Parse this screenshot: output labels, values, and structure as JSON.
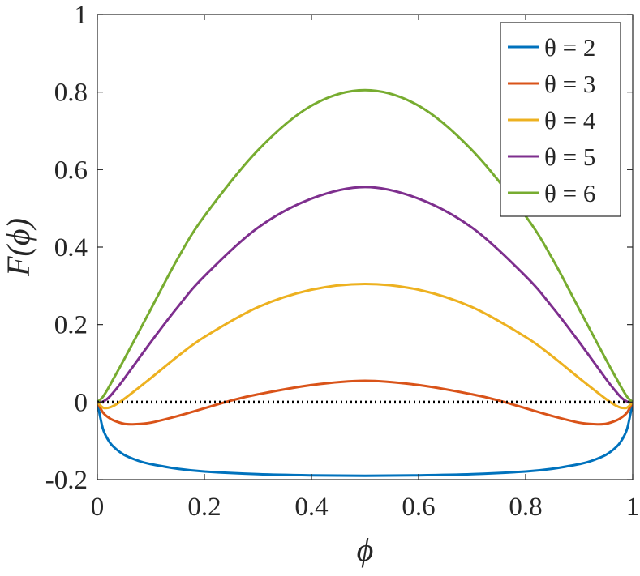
{
  "chart_data": {
    "type": "line",
    "title": "",
    "xlabel": "ϕ",
    "ylabel": "F(ϕ)",
    "xlim": [
      0,
      1
    ],
    "ylim": [
      -0.2,
      1
    ],
    "x_ticks": [
      "0",
      "0.2",
      "0.4",
      "0.6",
      "0.8",
      "1"
    ],
    "x_tick_values": [
      0,
      0.2,
      0.4,
      0.6,
      0.8,
      1
    ],
    "y_ticks": [
      "-0.2",
      "0",
      "0.2",
      "0.4",
      "0.6",
      "0.8",
      "1"
    ],
    "y_tick_values": [
      -0.2,
      0,
      0.2,
      0.4,
      0.6,
      0.8,
      1
    ],
    "grid": false,
    "legend_position": "top-right",
    "reference_line": {
      "y": 0,
      "style": "dotted",
      "color": "#000000"
    },
    "series": [
      {
        "name": "θ = 2",
        "color": "#0072BD",
        "x": [
          0,
          0.01,
          0.02,
          0.03,
          0.05,
          0.08,
          0.1,
          0.15,
          0.2,
          0.3,
          0.4,
          0.5,
          0.6,
          0.7,
          0.8,
          0.85,
          0.9,
          0.92,
          0.95,
          0.97,
          0.98,
          0.99,
          1
        ],
        "y": [
          0,
          -0.067,
          -0.097,
          -0.115,
          -0.136,
          -0.153,
          -0.16,
          -0.172,
          -0.179,
          -0.186,
          -0.189,
          -0.19,
          -0.189,
          -0.186,
          -0.179,
          -0.172,
          -0.16,
          -0.153,
          -0.136,
          -0.115,
          -0.097,
          -0.067,
          0
        ]
      },
      {
        "name": "θ = 3",
        "color": "#D95319",
        "x": [
          0,
          0.01,
          0.02,
          0.03,
          0.05,
          0.07,
          0.1,
          0.15,
          0.2,
          0.25,
          0.3,
          0.4,
          0.5,
          0.6,
          0.7,
          0.75,
          0.8,
          0.85,
          0.9,
          0.93,
          0.95,
          0.97,
          0.98,
          0.99,
          1
        ],
        "y": [
          0,
          -0.026,
          -0.039,
          -0.047,
          -0.056,
          -0.057,
          -0.053,
          -0.036,
          -0.016,
          0.004,
          0.02,
          0.044,
          0.055,
          0.044,
          0.02,
          0.004,
          -0.016,
          -0.036,
          -0.053,
          -0.057,
          -0.056,
          -0.047,
          -0.039,
          -0.026,
          0
        ]
      },
      {
        "name": "θ = 4",
        "color": "#EDB120",
        "x": [
          0,
          0.01,
          0.02,
          0.03,
          0.05,
          0.1,
          0.15,
          0.2,
          0.3,
          0.4,
          0.5,
          0.6,
          0.7,
          0.8,
          0.85,
          0.9,
          0.95,
          0.97,
          0.98,
          0.99,
          1
        ],
        "y": [
          0,
          -0.014,
          -0.015,
          -0.01,
          0.008,
          0.062,
          0.118,
          0.168,
          0.245,
          0.29,
          0.305,
          0.29,
          0.245,
          0.168,
          0.118,
          0.062,
          0.008,
          -0.01,
          -0.015,
          -0.014,
          0
        ]
      },
      {
        "name": "θ = 5",
        "color": "#7E2F8E",
        "x": [
          0,
          0.01,
          0.02,
          0.03,
          0.05,
          0.1,
          0.15,
          0.2,
          0.3,
          0.4,
          0.5,
          0.6,
          0.7,
          0.8,
          0.85,
          0.9,
          0.95,
          0.97,
          0.98,
          0.99,
          1
        ],
        "y": [
          0,
          0.001,
          0.01,
          0.025,
          0.06,
          0.155,
          0.245,
          0.325,
          0.45,
          0.525,
          0.555,
          0.525,
          0.45,
          0.325,
          0.245,
          0.155,
          0.06,
          0.025,
          0.01,
          0.001,
          0
        ]
      },
      {
        "name": "θ = 6",
        "color": "#77AC30",
        "x": [
          0,
          0.01,
          0.02,
          0.03,
          0.05,
          0.1,
          0.15,
          0.2,
          0.3,
          0.4,
          0.5,
          0.6,
          0.7,
          0.8,
          0.85,
          0.9,
          0.95,
          0.97,
          0.98,
          0.99,
          1
        ],
        "y": [
          0,
          0.013,
          0.035,
          0.06,
          0.11,
          0.24,
          0.37,
          0.48,
          0.65,
          0.765,
          0.805,
          0.765,
          0.65,
          0.48,
          0.37,
          0.24,
          0.11,
          0.06,
          0.035,
          0.013,
          0
        ]
      }
    ]
  }
}
